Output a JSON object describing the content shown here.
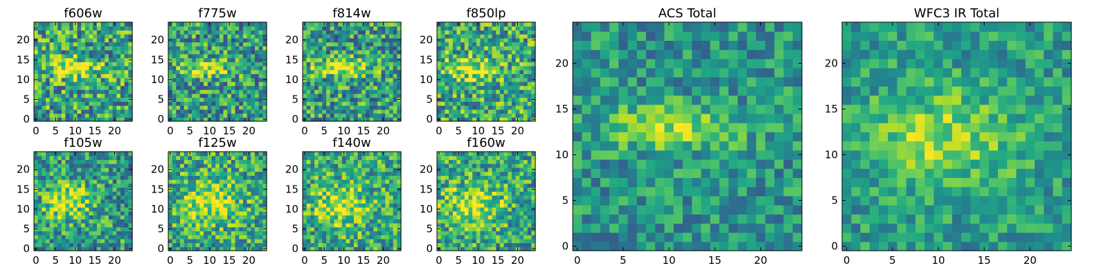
{
  "chart_data": [
    {
      "type": "heatmap",
      "title": "f606w",
      "grid_size": 25,
      "xticks": [
        "0",
        "5",
        "10",
        "15",
        "20"
      ],
      "yticks": [
        "0",
        "5",
        "10",
        "15",
        "20"
      ],
      "xlim": [
        -0.5,
        24.5
      ],
      "ylim": [
        -0.5,
        24.5
      ],
      "colormap": "viridis",
      "feature": {
        "x": 9,
        "y": 13,
        "sx": 5.0,
        "sy": 1.6,
        "amp": 0.45
      },
      "noise": 0.35,
      "base": 0.58,
      "seed": 11
    },
    {
      "type": "heatmap",
      "title": "f775w",
      "grid_size": 25,
      "xticks": [
        "0",
        "5",
        "10",
        "15",
        "20"
      ],
      "yticks": [
        "0",
        "5",
        "10",
        "15",
        "20"
      ],
      "xlim": [
        -0.5,
        24.5
      ],
      "ylim": [
        -0.5,
        24.5
      ],
      "colormap": "viridis",
      "feature": {
        "x": 9,
        "y": 13,
        "sx": 4.5,
        "sy": 1.6,
        "amp": 0.45
      },
      "noise": 0.33,
      "base": 0.55,
      "seed": 23
    },
    {
      "type": "heatmap",
      "title": "f814w",
      "grid_size": 25,
      "xticks": [
        "0",
        "5",
        "10",
        "15",
        "20"
      ],
      "yticks": [
        "0",
        "5",
        "10",
        "15",
        "20"
      ],
      "xlim": [
        -0.5,
        24.5
      ],
      "ylim": [
        -0.5,
        24.5
      ],
      "colormap": "viridis",
      "feature": {
        "x": 10,
        "y": 13,
        "sx": 5.0,
        "sy": 1.5,
        "amp": 0.45
      },
      "noise": 0.33,
      "base": 0.55,
      "seed": 37
    },
    {
      "type": "heatmap",
      "title": "f850lp",
      "grid_size": 25,
      "xticks": [
        "0",
        "5",
        "10",
        "15",
        "20"
      ],
      "yticks": [
        "0",
        "5",
        "10",
        "15",
        "20"
      ],
      "xlim": [
        -0.5,
        24.5
      ],
      "ylim": [
        -0.5,
        24.5
      ],
      "colormap": "viridis",
      "feature": {
        "x": 9,
        "y": 13,
        "sx": 5.0,
        "sy": 2.0,
        "amp": 0.35
      },
      "noise": 0.33,
      "base": 0.6,
      "seed": 41
    },
    {
      "type": "heatmap",
      "title": "f105w",
      "grid_size": 25,
      "xticks": [
        "0",
        "5",
        "10",
        "15",
        "20"
      ],
      "yticks": [
        "0",
        "5",
        "10",
        "15",
        "20"
      ],
      "xlim": [
        -0.5,
        24.5
      ],
      "ylim": [
        -0.5,
        24.5
      ],
      "colormap": "viridis",
      "feature": {
        "x": 8,
        "y": 12,
        "sx": 4.0,
        "sy": 3.0,
        "amp": 0.4
      },
      "noise": 0.3,
      "base": 0.55,
      "seed": 53
    },
    {
      "type": "heatmap",
      "title": "f125w",
      "grid_size": 25,
      "xticks": [
        "0",
        "5",
        "10",
        "15",
        "20"
      ],
      "yticks": [
        "0",
        "5",
        "10",
        "15",
        "20"
      ],
      "xlim": [
        -0.5,
        24.5
      ],
      "ylim": [
        -0.5,
        24.5
      ],
      "colormap": "viridis",
      "feature": {
        "x": 10,
        "y": 12,
        "sx": 5.0,
        "sy": 3.5,
        "amp": 0.35
      },
      "noise": 0.3,
      "base": 0.6,
      "seed": 67
    },
    {
      "type": "heatmap",
      "title": "f140w",
      "grid_size": 25,
      "xticks": [
        "0",
        "5",
        "10",
        "15",
        "20"
      ],
      "yticks": [
        "0",
        "5",
        "10",
        "15",
        "20"
      ],
      "xlim": [
        -0.5,
        24.5
      ],
      "ylim": [
        -0.5,
        24.5
      ],
      "colormap": "viridis",
      "feature": {
        "x": 9,
        "y": 11,
        "sx": 5.0,
        "sy": 3.5,
        "amp": 0.35
      },
      "noise": 0.3,
      "base": 0.6,
      "seed": 79
    },
    {
      "type": "heatmap",
      "title": "f160w",
      "grid_size": 25,
      "xticks": [
        "0",
        "5",
        "10",
        "15",
        "20"
      ],
      "yticks": [
        "0",
        "5",
        "10",
        "15",
        "20"
      ],
      "xlim": [
        -0.5,
        24.5
      ],
      "ylim": [
        -0.5,
        24.5
      ],
      "colormap": "viridis",
      "feature": {
        "x": 9,
        "y": 11,
        "sx": 5.0,
        "sy": 3.5,
        "amp": 0.35
      },
      "noise": 0.3,
      "base": 0.6,
      "seed": 83
    },
    {
      "type": "heatmap",
      "title": "ACS Total",
      "grid_size": 25,
      "xticks": [
        "0",
        "5",
        "10",
        "15",
        "20"
      ],
      "yticks": [
        "0",
        "5",
        "10",
        "15",
        "20"
      ],
      "xlim": [
        -0.5,
        24.5
      ],
      "ylim": [
        -0.5,
        24.5
      ],
      "colormap": "viridis",
      "feature": {
        "x": 10,
        "y": 13,
        "sx": 5.0,
        "sy": 1.7,
        "amp": 0.35
      },
      "noise": 0.22,
      "base": 0.52,
      "seed": 97
    },
    {
      "type": "heatmap",
      "title": "WFC3 IR Total",
      "grid_size": 25,
      "xticks": [
        "0",
        "5",
        "10",
        "15",
        "20"
      ],
      "yticks": [
        "0",
        "5",
        "10",
        "15",
        "20"
      ],
      "xlim": [
        -0.5,
        24.5
      ],
      "ylim": [
        -0.5,
        24.5
      ],
      "colormap": "viridis",
      "feature": {
        "x": 11,
        "y": 12,
        "sx": 6.0,
        "sy": 3.5,
        "amp": 0.3
      },
      "noise": 0.2,
      "base": 0.55,
      "seed": 101
    }
  ]
}
